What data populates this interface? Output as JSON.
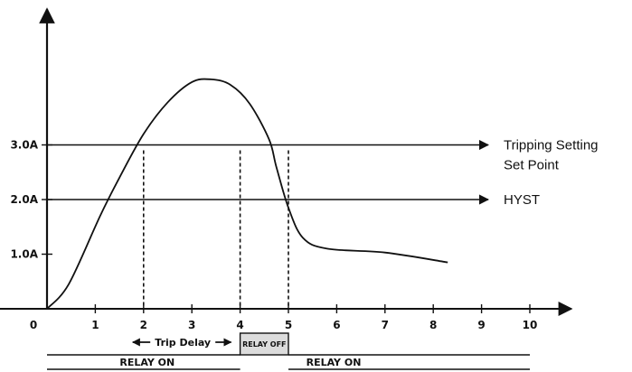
{
  "chart_data": {
    "type": "line",
    "title": "",
    "xlabel": "",
    "ylabel": "",
    "origin_label": "0",
    "x_ticks": [
      "1",
      "2",
      "3",
      "4",
      "5",
      "6",
      "7",
      "8",
      "9",
      "10"
    ],
    "y_ticks": [
      "1.0A",
      "2.0A",
      "3.0A"
    ],
    "xlim": [
      0,
      10.8
    ],
    "ylim": [
      0,
      5.9
    ],
    "series": [
      {
        "x": [
          0,
          0.45,
          1.1,
          1.5,
          2.0,
          2.5,
          3.0,
          3.4,
          3.8,
          4.2,
          4.6,
          4.75,
          5.0,
          5.3,
          5.8,
          7.0,
          8.3
        ],
        "y": [
          0,
          0.45,
          1.7,
          2.4,
          3.2,
          3.78,
          4.15,
          4.2,
          4.1,
          3.75,
          3.1,
          2.6,
          1.85,
          1.3,
          1.1,
          1.03,
          0.85
        ]
      }
    ],
    "reference_lines": [
      {
        "y": 3.0,
        "label_lines": [
          "Tripping Setting",
          "Set Point"
        ]
      },
      {
        "y": 2.0,
        "label_lines": [
          "HYST"
        ]
      }
    ],
    "markers_x": [
      2,
      4,
      5
    ],
    "trip_delay": {
      "label": "Trip Delay",
      "from": 2,
      "to": 4
    },
    "relay": {
      "on_label": "RELAY ON",
      "off_label": "RELAY OFF",
      "off_from": 4,
      "off_to": 5,
      "end": 10
    }
  }
}
